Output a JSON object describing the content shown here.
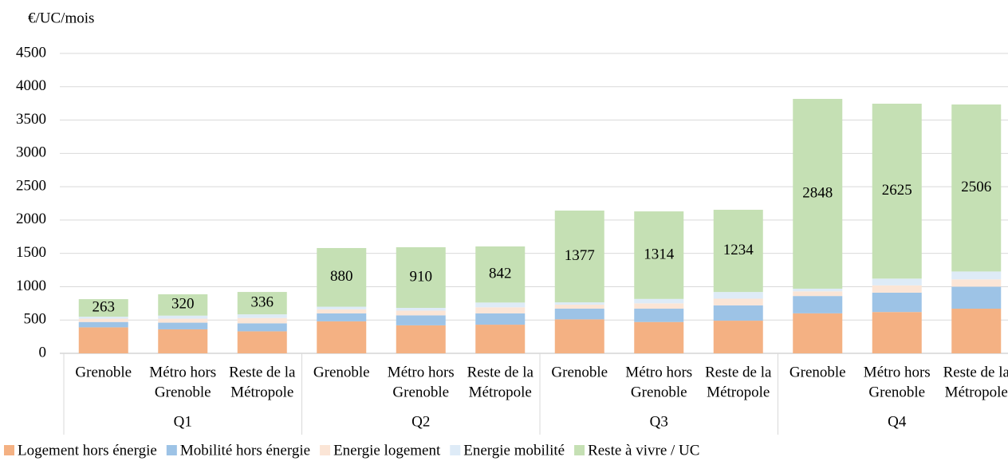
{
  "chart_data": {
    "type": "stacked_bar",
    "y_label": "€/UC/mois",
    "categories": [
      [
        "Grenoble"
      ],
      [
        "Métro hors",
        "Grenoble"
      ],
      [
        "Reste de la",
        "Métropole"
      ],
      [
        "Grenoble"
      ],
      [
        "Métro hors",
        "Grenoble"
      ],
      [
        "Reste de la",
        "Métropole"
      ],
      [
        "Grenoble"
      ],
      [
        "Métro hors",
        "Grenoble"
      ],
      [
        "Reste de la",
        "Métropole"
      ],
      [
        "Grenoble"
      ],
      [
        "Métro hors",
        "Grenoble"
      ],
      [
        "Reste de la",
        "Métropole"
      ]
    ],
    "groups": [
      "Q1",
      "Q2",
      "Q3",
      "Q4"
    ],
    "series": [
      {
        "name": "Logement hors énergie",
        "color": "#f4b183",
        "values": [
          390,
          360,
          330,
          480,
          420,
          430,
          510,
          470,
          490,
          600,
          620,
          670
        ]
      },
      {
        "name": "Mobilité hors énergie",
        "color": "#9dc3e6",
        "values": [
          80,
          100,
          120,
          120,
          150,
          170,
          160,
          200,
          230,
          260,
          290,
          330
        ]
      },
      {
        "name": "Energie logement",
        "color": "#fbe5d6",
        "values": [
          50,
          60,
          80,
          60,
          70,
          90,
          60,
          80,
          100,
          70,
          110,
          110
        ]
      },
      {
        "name": "Energie mobilité",
        "color": "#deebf7",
        "values": [
          30,
          46,
          55,
          40,
          42,
          72,
          35,
          66,
          100,
          40,
          101,
          118
        ]
      },
      {
        "name": "Reste à vivre / UC",
        "color": "#c5e0b4",
        "labels": true,
        "values": [
          263,
          320,
          336,
          880,
          910,
          842,
          1377,
          1314,
          1234,
          2848,
          2625,
          2506
        ]
      }
    ],
    "ylim": [
      0,
      4500
    ],
    "yticks": [
      0,
      500,
      1000,
      1500,
      2000,
      2500,
      3000,
      3500,
      4000,
      4500
    ],
    "grid": true
  }
}
